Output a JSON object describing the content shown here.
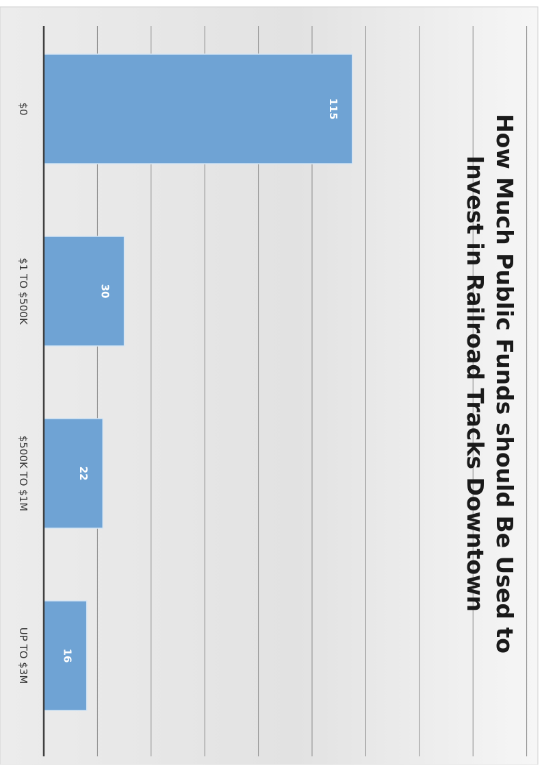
{
  "chart_data": {
    "type": "bar",
    "orientation": "rotated-90-clockwise",
    "title_lines": [
      "How Much Public Funds should Be Used to",
      "Invest in Railroad Tracks Downtown"
    ],
    "categories": [
      "$0",
      "$1 TO $500K",
      "$500K TO $1M",
      "UP TO $3M"
    ],
    "values": [
      115,
      30,
      22,
      16
    ],
    "ylim": [
      0,
      180
    ],
    "grid": true,
    "legend": "none",
    "colors": {
      "bar": "#6fa3d4",
      "bar_edge": "#d6e6f4",
      "axis": "#404040",
      "grid": "#8a8a8a",
      "title": "#1a1a1a",
      "label": "#333333",
      "value_label": "#ffffff"
    }
  }
}
